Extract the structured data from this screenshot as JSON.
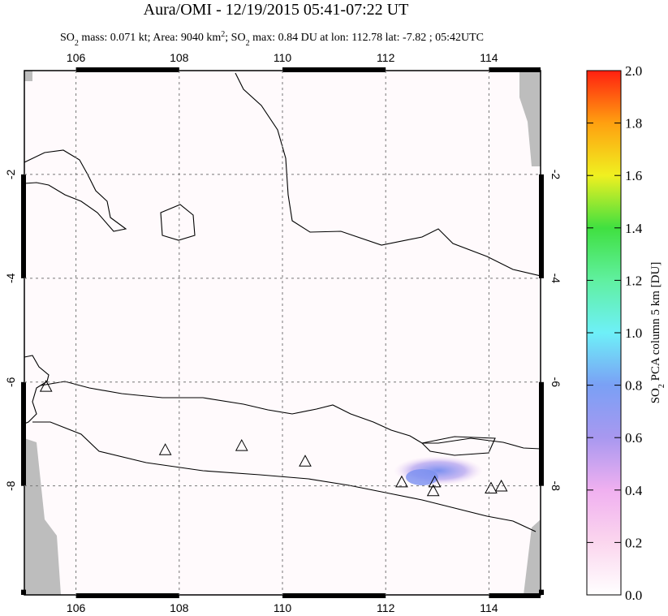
{
  "header": {
    "title": "Aura/OMI - 12/19/2015 05:41-07:22 UT",
    "subtitle": [
      "SO",
      "2",
      " mass: 0.071 kt; Area: 9040 km",
      "2",
      "; SO",
      "2",
      " max: 0.84 DU at lon: 112.78 lat: -7.82 ; 05:42UTC"
    ]
  },
  "map": {
    "xlim": [
      105,
      115
    ],
    "ylim": [
      -10.1,
      0
    ],
    "xticks": [
      106,
      108,
      110,
      112,
      114
    ],
    "yticks": [
      -2,
      -4,
      -6,
      -8
    ],
    "grid": true,
    "volcanoes": {
      "lon": [
        105.42,
        107.73,
        109.21,
        110.44,
        112.31,
        112.95,
        112.92,
        114.04,
        114.24
      ],
      "lat": [
        -6.1,
        -7.32,
        -7.24,
        -7.54,
        -7.94,
        -7.94,
        -8.11,
        -8.06,
        -8.02
      ]
    }
  },
  "colorbar": {
    "label": [
      "SO",
      "2",
      " PCA column 5 km [DU]"
    ],
    "lim": [
      0,
      2
    ],
    "ticks": [
      {
        "value": 0,
        "label": "0.0"
      },
      {
        "value": 0.2,
        "label": "0.2"
      },
      {
        "value": 0.4,
        "label": "0.4"
      },
      {
        "value": 0.6,
        "label": "0.6"
      },
      {
        "value": 0.8,
        "label": "0.8"
      },
      {
        "value": 1,
        "label": "1.0"
      },
      {
        "value": 1.2,
        "label": "1.2"
      },
      {
        "value": 1.4,
        "label": "1.4"
      },
      {
        "value": 1.6,
        "label": "1.6"
      },
      {
        "value": 1.8,
        "label": "1.8"
      },
      {
        "value": 2,
        "label": "2.0"
      }
    ]
  }
}
